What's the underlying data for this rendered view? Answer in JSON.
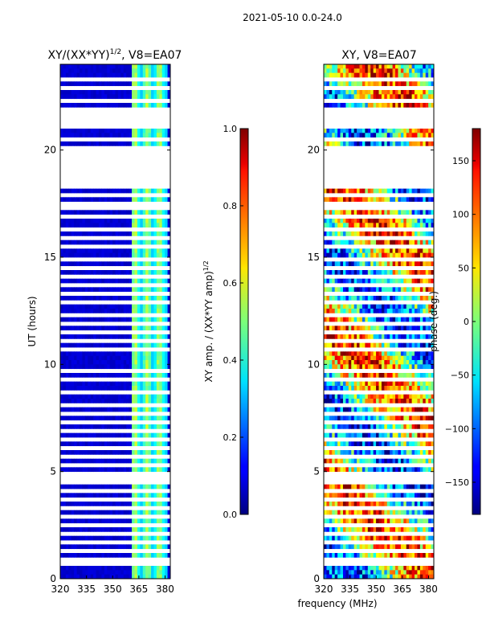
{
  "suptitle": "2021-05-10 0.0-24.0",
  "shared_xlabel": "frequency (MHz)",
  "colors": {
    "jet": [
      "#00007f",
      "#0000ff",
      "#007fff",
      "#00ffff",
      "#7fff7f",
      "#ffff00",
      "#ff7f00",
      "#ff0000",
      "#7f0000"
    ],
    "gap": "#ffffff"
  },
  "chart_data": [
    {
      "type": "heatmap",
      "title_main": "XY/(XX*YY)",
      "title_exp": "1/2",
      "title_rest": ", V8=EA07",
      "xlabel": "",
      "ylabel": "UT (hours)",
      "x_range": [
        320,
        383
      ],
      "y_range": [
        0,
        24
      ],
      "x_ticks": [
        320,
        335,
        350,
        365,
        380
      ],
      "y_ticks": [
        0,
        5,
        10,
        15,
        20
      ],
      "cbar_label_main": "XY amp. / (XX*YY amp)",
      "cbar_label_exp": "1/2",
      "cbar_range": [
        0.0,
        1.0
      ],
      "cbar_ticks": [
        "0.0",
        "0.2",
        "0.4",
        "0.6",
        "0.8",
        "1.0"
      ],
      "cbar_tick_values": [
        0.0,
        0.2,
        0.4,
        0.6,
        0.8,
        1.0
      ],
      "description_values": "mostly ~0.05 (dark blue) below 360 MHz; 0.3-0.6 stripes between 361 and 382 MHz",
      "gaps_hours": [
        [
          18.5,
          20.2
        ],
        [
          21.2,
          21.9
        ],
        [
          4.8,
          5.0
        ],
        [
          14.8,
          15.0
        ]
      ]
    },
    {
      "type": "heatmap",
      "title_main": "XY, V8=EA07",
      "xlabel": "frequency (MHz)",
      "ylabel": "",
      "x_range": [
        320,
        383
      ],
      "y_range": [
        0,
        24
      ],
      "x_ticks": [
        320,
        335,
        350,
        365,
        380
      ],
      "y_ticks": [
        0,
        5,
        10,
        15,
        20
      ],
      "cbar_label_main": "phase (deg.)",
      "cbar_range": [
        -180,
        180
      ],
      "cbar_ticks": [
        "−150",
        "−100",
        "−50",
        "0",
        "50",
        "100",
        "150"
      ],
      "cbar_tick_values": [
        -150,
        -100,
        -50,
        0,
        50,
        100,
        150
      ],
      "gaps_hours": [
        [
          18.5,
          20.2
        ],
        [
          21.2,
          21.9
        ],
        [
          4.8,
          5.0
        ],
        [
          14.8,
          15.0
        ]
      ]
    }
  ]
}
